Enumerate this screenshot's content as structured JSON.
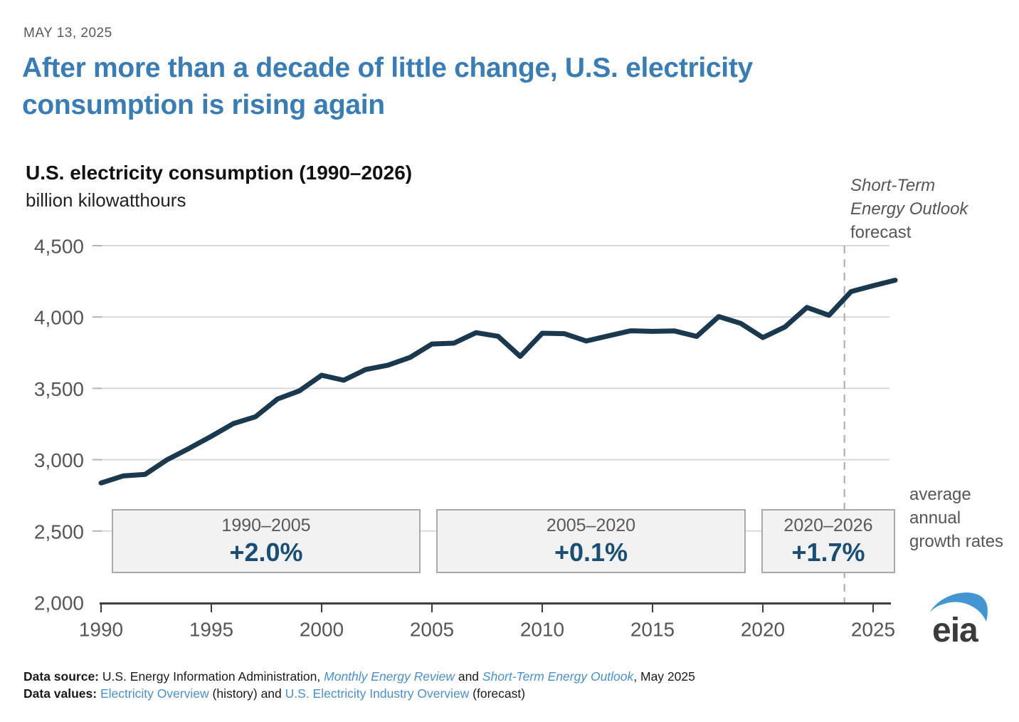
{
  "page": {
    "date": "MAY 13, 2025",
    "title": "After more than a decade of little change, U.S. electricity consumption is rising again"
  },
  "chart": {
    "title": "U.S. electricity consumption (1990–2026)",
    "unit_label": "billion kilowatthours",
    "forecast_note": {
      "line1": "Short-Term",
      "line2": "Energy Outlook",
      "line3": "forecast"
    }
  },
  "chart_data": {
    "type": "line",
    "title": "U.S. electricity consumption (1990–2026)",
    "ylabel": "billion kilowatthours",
    "x": [
      1990,
      1991,
      1992,
      1993,
      1994,
      1995,
      1996,
      1997,
      1998,
      1999,
      2000,
      2001,
      2002,
      2003,
      2004,
      2005,
      2006,
      2007,
      2008,
      2009,
      2010,
      2011,
      2012,
      2013,
      2014,
      2015,
      2016,
      2017,
      2018,
      2019,
      2020,
      2021,
      2022,
      2023,
      2024,
      2025,
      2026
    ],
    "values": [
      2837,
      2886,
      2897,
      3000,
      3080,
      3164,
      3253,
      3301,
      3425,
      3483,
      3592,
      3557,
      3632,
      3662,
      3716,
      3811,
      3817,
      3890,
      3865,
      3724,
      3886,
      3883,
      3832,
      3868,
      3903,
      3899,
      3902,
      3864,
      4003,
      3955,
      3856,
      3930,
      4067,
      4012,
      4178,
      4219,
      4258
    ],
    "ylim": [
      2000,
      4500
    ],
    "ytick_step": 500,
    "xticks": [
      1990,
      1995,
      2000,
      2005,
      2010,
      2015,
      2020,
      2025
    ],
    "grid": true,
    "line_color": "#1b394e",
    "forecast_divider_year": 2023.7,
    "forecast_label": "Short-Term Energy Outlook forecast",
    "growth_annotations": [
      {
        "range": "1990–2005",
        "rate": "+2.0%"
      },
      {
        "range": "2005–2020",
        "rate": "+0.1%"
      },
      {
        "range": "2020–2026",
        "rate": "+1.7%"
      }
    ],
    "growth_caption": "average annual growth rates"
  },
  "footer": {
    "source_label": "Data source:",
    "source_text1": " U.S. Energy Information Administration, ",
    "source_link1": "Monthly Energy Review",
    "source_text2": " and ",
    "source_link2": "Short-Term Energy Outlook",
    "source_text3": ", May 2025",
    "values_label": "Data values:",
    "values_text1": " ",
    "values_link1": "Electricity Overview",
    "values_text2": " (history) and ",
    "values_link2": "U.S. Electricity Industry Overview",
    "values_text3": " (forecast)"
  },
  "logo": {
    "text": "eia"
  },
  "colors": {
    "accent_blue": "#3a7cb4",
    "link_blue": "#4a90c9",
    "line_navy": "#1b394e",
    "value_navy": "#1a4e74"
  }
}
